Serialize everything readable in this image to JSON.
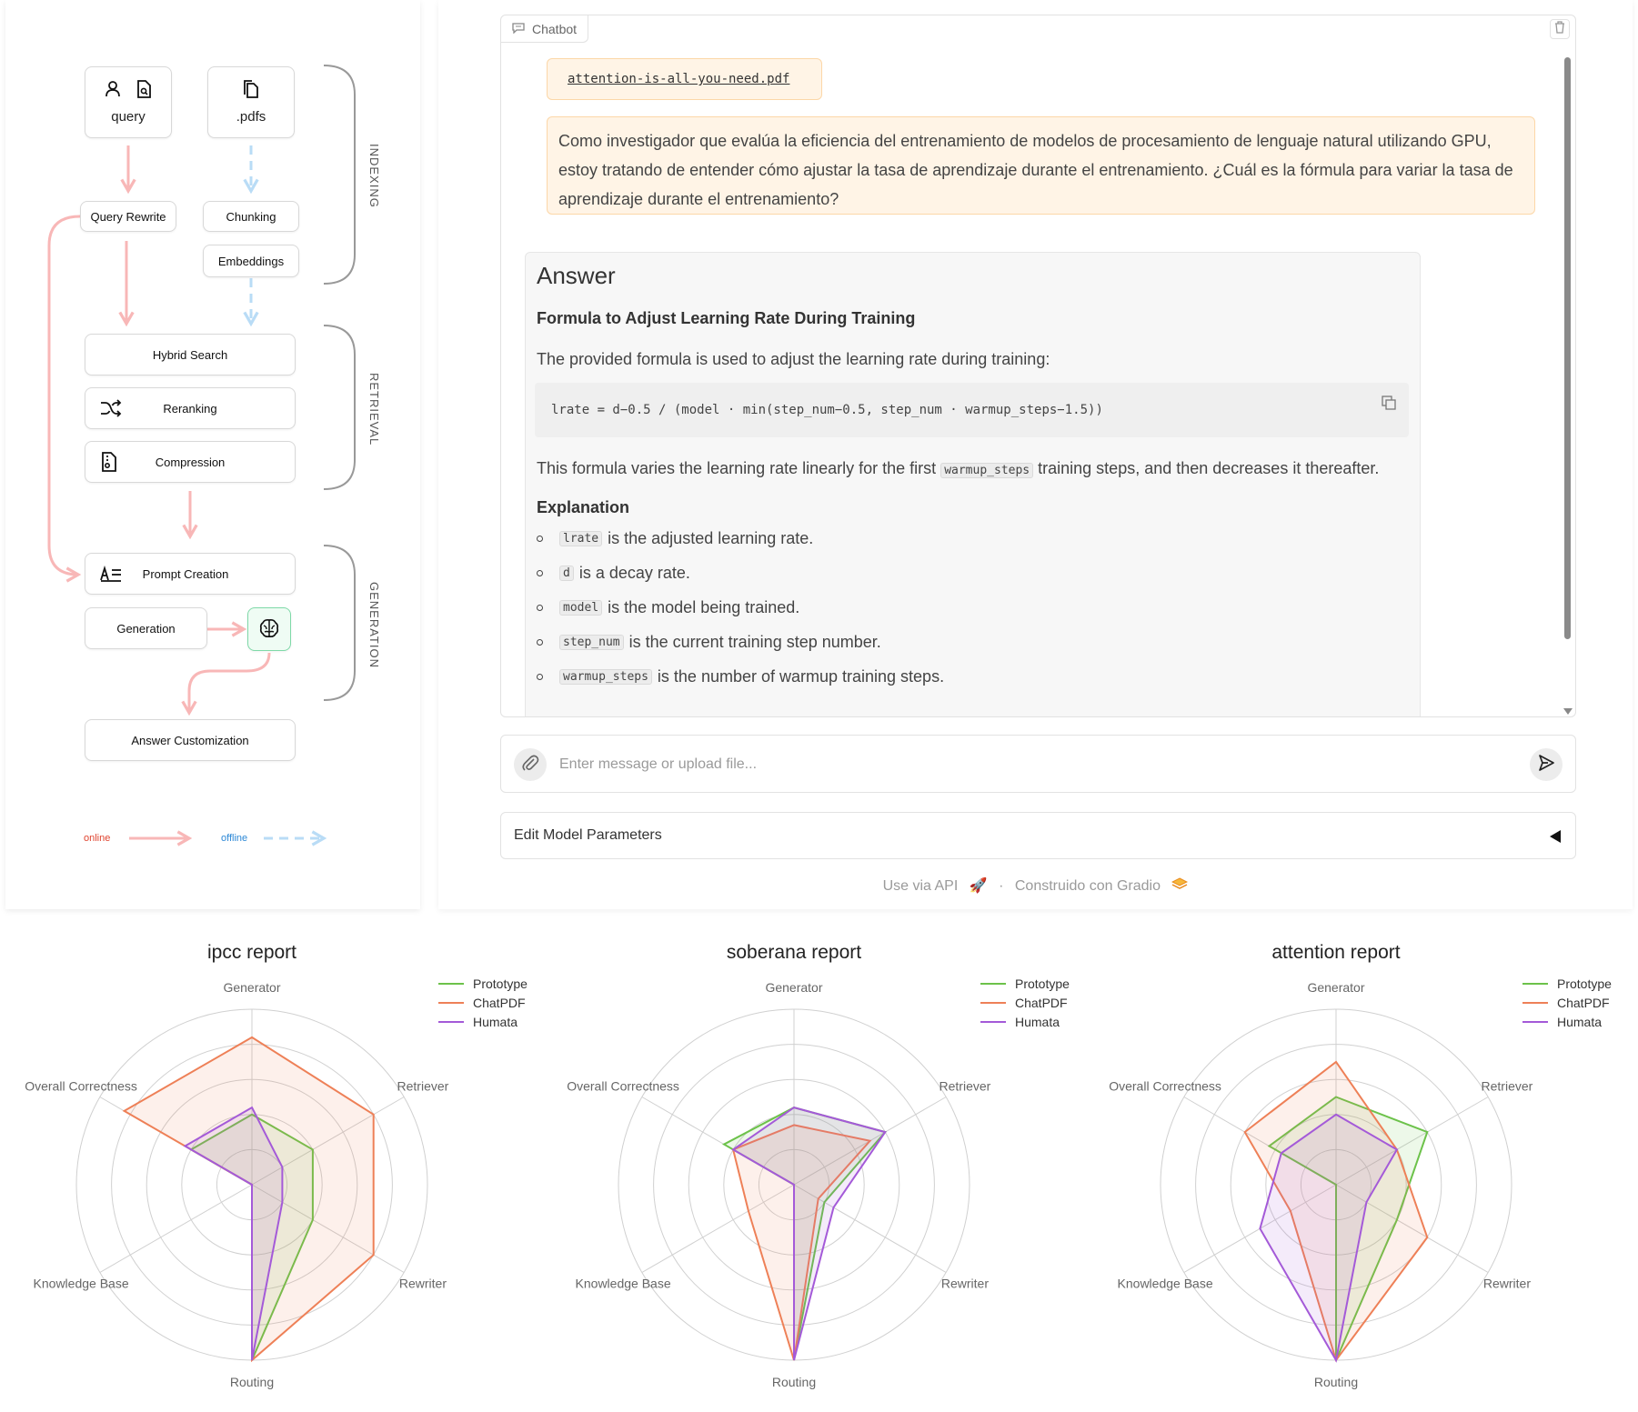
{
  "pipeline": {
    "query_label": "query",
    "pdfs_label": ".pdfs",
    "query_rewrite": "Query Rewrite",
    "chunking": "Chunking",
    "embeddings": "Embeddings",
    "hybrid_search": "Hybrid Search",
    "reranking": "Reranking",
    "compression": "Compression",
    "prompt_creation": "Prompt Creation",
    "generation": "Generation",
    "answer_customization": "Answer Customization",
    "stage_indexing": "INDEXING",
    "stage_retrieval": "RETRIEVAL",
    "stage_generation": "GENERATION",
    "legend_online": "online",
    "legend_offline": "offline",
    "colors": {
      "online": "#f8b7b7",
      "offline": "#b9dcf6",
      "brain": "#7fd9a8"
    }
  },
  "chat": {
    "tab_label": "Chatbot",
    "file_name": "attention-is-all-you-need.pdf",
    "user_message": "Como investigador que evalúa la eficiencia del entrenamiento de modelos de procesamiento de lenguaje natural utilizando GPU, estoy tratando de entender cómo ajustar la tasa de aprendizaje durante el entrenamiento. ¿Cuál es la fórmula para variar la tasa de aprendizaje durante el entrenamiento?",
    "answer": {
      "heading": "Answer",
      "subheading": "Formula to Adjust Learning Rate During Training",
      "intro": "The provided formula is used to adjust the learning rate during training:",
      "code": "lrate = d−0.5 / (model · min(step_num−0.5, step_num · warmup_steps−1.5))",
      "varies_prefix": "This formula varies the learning rate linearly for the first",
      "varies_code": "warmup_steps",
      "varies_suffix": "training steps, and then decreases it thereafter.",
      "explanation_heading": "Explanation",
      "bullets": [
        {
          "code": "lrate",
          "text": "is the adjusted learning rate."
        },
        {
          "code": "d",
          "text": "is a decay rate."
        },
        {
          "code": "model",
          "text": "is the model being trained."
        },
        {
          "code": "step_num",
          "text": "is the current training step number."
        },
        {
          "code": "warmup_steps",
          "text": "is the number of warmup training steps."
        }
      ]
    },
    "input_placeholder": "Enter message or upload file...",
    "params_label": "Edit Model Parameters",
    "footer_api": "Use via API",
    "footer_sep": "·",
    "footer_built": "Construido con Gradio"
  },
  "chart_data": [
    {
      "type": "radar",
      "title": "ipcc report",
      "axes": [
        "Generator",
        "Retriever",
        "Rewriter",
        "Routing",
        "Knowledge Base",
        "Overall Correctness"
      ],
      "rmax": 5,
      "series": [
        {
          "name": "Prototype",
          "color": "#6cc24a",
          "values": [
            2,
            2,
            2,
            5,
            0,
            2
          ]
        },
        {
          "name": "ChatPDF",
          "color": "#ee8057",
          "values": [
            4.2,
            4,
            4,
            5,
            0,
            4.2
          ]
        },
        {
          "name": "Humata",
          "color": "#a45ad8",
          "values": [
            2.2,
            1,
            1,
            5,
            0,
            2.2
          ]
        }
      ]
    },
    {
      "type": "radar",
      "title": "soberana report",
      "axes": [
        "Generator",
        "Retriever",
        "Rewriter",
        "Routing",
        "Knowledge Base",
        "Overall Correctness"
      ],
      "rmax": 5,
      "series": [
        {
          "name": "Prototype",
          "color": "#6cc24a",
          "values": [
            2.2,
            3,
            1,
            5,
            0,
            2.3
          ]
        },
        {
          "name": "ChatPDF",
          "color": "#ee8057",
          "values": [
            1.7,
            2.5,
            0.8,
            5,
            1.5,
            2
          ]
        },
        {
          "name": "Humata",
          "color": "#a45ad8",
          "values": [
            2.2,
            3,
            1.3,
            5,
            0,
            2
          ]
        }
      ]
    },
    {
      "type": "radar",
      "title": "attention report",
      "axes": [
        "Generator",
        "Retriever",
        "Rewriter",
        "Routing",
        "Knowledge Base",
        "Overall Correctness"
      ],
      "rmax": 5,
      "series": [
        {
          "name": "Prototype",
          "color": "#6cc24a",
          "values": [
            2.5,
            3,
            2,
            5,
            0,
            2.2
          ]
        },
        {
          "name": "ChatPDF",
          "color": "#ee8057",
          "values": [
            3.5,
            2,
            3,
            5,
            1.5,
            3
          ]
        },
        {
          "name": "Humata",
          "color": "#a45ad8",
          "values": [
            2,
            2,
            1,
            5,
            2.5,
            1.8
          ]
        }
      ]
    }
  ]
}
